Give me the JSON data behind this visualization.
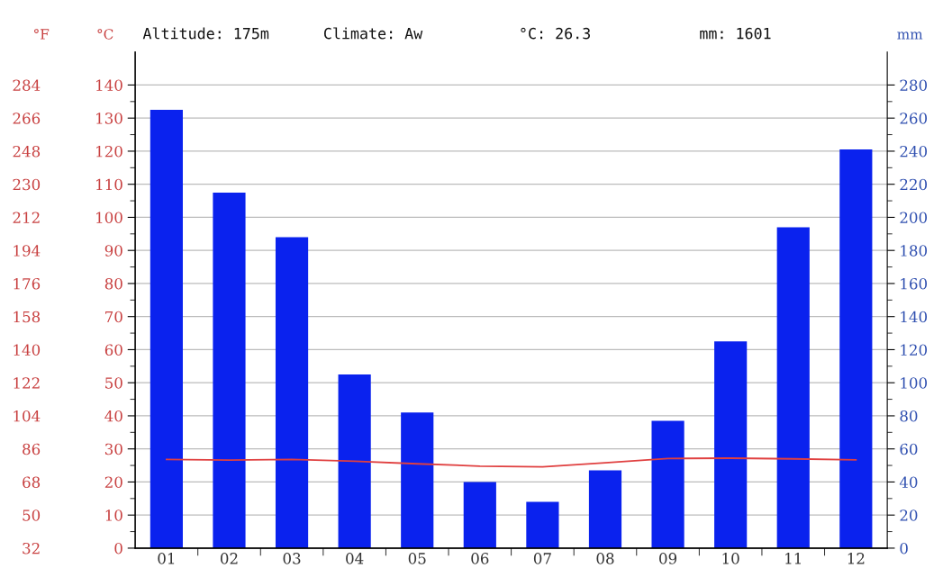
{
  "chart_data": {
    "type": "bar",
    "categories": [
      "01",
      "02",
      "03",
      "04",
      "05",
      "06",
      "07",
      "08",
      "09",
      "10",
      "11",
      "12"
    ],
    "annotations": [
      "Altitude: 175m",
      "Climate: Aw",
      "°C: 26.3",
      "mm: 1601"
    ],
    "ylabel": "°C",
    "y2label": "mm",
    "y3label": "°F",
    "series": [
      {
        "axis": "y2",
        "color": "#0a22ee",
        "values": [
          265,
          215,
          188,
          105,
          82,
          40,
          28,
          47,
          77,
          125,
          194,
          241
        ]
      },
      {
        "type": "line",
        "axis": "y",
        "color": "#e04040",
        "values": [
          26.8,
          26.6,
          26.8,
          26.3,
          25.5,
          24.8,
          24.6,
          25.8,
          27.1,
          27.2,
          27.0,
          26.7
        ]
      }
    ],
    "ylim": [
      0,
      150
    ],
    "yticks": [
      0,
      10,
      20,
      30,
      40,
      50,
      60,
      70,
      80,
      90,
      100,
      110,
      120,
      130,
      140
    ],
    "y2lim": [
      0,
      300
    ],
    "y2ticks": [
      0,
      20,
      40,
      60,
      80,
      100,
      120,
      140,
      160,
      180,
      200,
      220,
      240,
      260,
      280
    ],
    "y3lim": [
      32,
      302
    ],
    "y3ticks": [
      32,
      50,
      68,
      86,
      104,
      122,
      140,
      158,
      176,
      194,
      212,
      230,
      248,
      266,
      284
    ],
    "grid": "y",
    "legend": false
  }
}
